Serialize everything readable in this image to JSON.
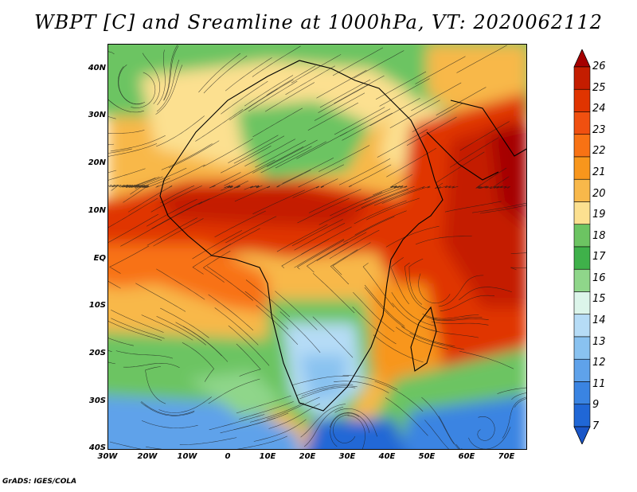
{
  "title": "WBPT [C] and Sreamline at 1000hPa, VT: 2020062112",
  "footer": "GrADS: IGES/COLA",
  "lat_labels": [
    "40N",
    "30N",
    "20N",
    "10N",
    "EQ",
    "10S",
    "20S",
    "30S",
    "40S"
  ],
  "lon_labels": [
    "30W",
    "20W",
    "10W",
    "0",
    "10E",
    "20E",
    "30E",
    "40E",
    "50E",
    "60E",
    "70E"
  ],
  "colorbar": {
    "labels": [
      "26",
      "25",
      "24",
      "23",
      "22",
      "21",
      "20",
      "19",
      "18",
      "17",
      "16",
      "15",
      "14",
      "13",
      "12",
      "11",
      "9",
      "7"
    ],
    "colors": [
      "#a50000",
      "#c41d00",
      "#e03400",
      "#f05010",
      "#f87214",
      "#f8961c",
      "#f8b84a",
      "#fce090",
      "#6cc462",
      "#3fb14a",
      "#8fd68a",
      "#dcf5ea",
      "#b6dcf6",
      "#89c2f0",
      "#5fa2ea",
      "#3a84e2",
      "#2067d6",
      "#1a56c8"
    ]
  },
  "map": {
    "variable": "Wet-bulb potential temperature",
    "level": "1000hPa",
    "valid_time": "2020062112",
    "lon_range": [
      -30,
      75
    ],
    "lat_range": [
      -40,
      45
    ]
  }
}
